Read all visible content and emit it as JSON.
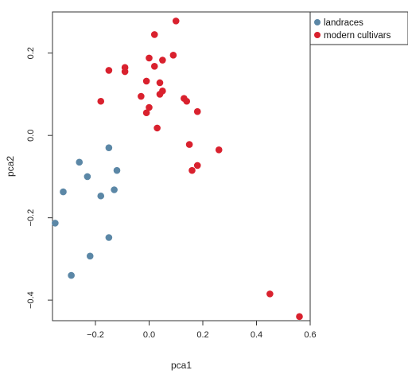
{
  "chart_data": {
    "type": "scatter",
    "xlabel": "pca1",
    "ylabel": "pca2",
    "xlim": [
      -0.36,
      0.6
    ],
    "ylim": [
      -0.45,
      0.3
    ],
    "x_ticks": [
      -0.2,
      0.0,
      0.2,
      0.4,
      0.6
    ],
    "x_tick_labels": [
      "−0.2",
      "0.0",
      "0.2",
      "0.4",
      "0.6"
    ],
    "y_ticks": [
      -0.4,
      -0.2,
      0.0,
      0.2
    ],
    "y_tick_labels": [
      "−0.4",
      "−0.2",
      "0.0",
      "0.2"
    ],
    "legend_position": "top-right, outside plot",
    "grid": false,
    "series": [
      {
        "name": "landraces",
        "color": "#5b87a6",
        "points": [
          [
            -0.26,
            -0.065
          ],
          [
            -0.23,
            -0.1
          ],
          [
            -0.15,
            -0.03
          ],
          [
            -0.12,
            -0.085
          ],
          [
            -0.32,
            -0.137
          ],
          [
            -0.18,
            -0.147
          ],
          [
            -0.13,
            -0.132
          ],
          [
            -0.35,
            -0.213
          ],
          [
            -0.15,
            -0.248
          ],
          [
            -0.22,
            -0.293
          ],
          [
            -0.29,
            -0.34
          ]
        ]
      },
      {
        "name": "modern  cultivars",
        "color": "#d9212e",
        "points": [
          [
            0.1,
            0.278
          ],
          [
            0.02,
            0.245
          ],
          [
            -0.09,
            0.165
          ],
          [
            -0.09,
            0.155
          ],
          [
            -0.15,
            0.158
          ],
          [
            0.0,
            0.188
          ],
          [
            0.05,
            0.183
          ],
          [
            0.09,
            0.195
          ],
          [
            0.02,
            0.168
          ],
          [
            -0.01,
            0.132
          ],
          [
            0.04,
            0.128
          ],
          [
            0.05,
            0.108
          ],
          [
            0.04,
            0.1
          ],
          [
            -0.03,
            0.095
          ],
          [
            -0.18,
            0.083
          ],
          [
            0.13,
            0.09
          ],
          [
            0.14,
            0.083
          ],
          [
            0.0,
            0.068
          ],
          [
            -0.01,
            0.055
          ],
          [
            0.18,
            0.058
          ],
          [
            0.03,
            0.018
          ],
          [
            0.15,
            -0.022
          ],
          [
            0.26,
            -0.035
          ],
          [
            0.18,
            -0.073
          ],
          [
            0.16,
            -0.085
          ],
          [
            0.45,
            -0.385
          ],
          [
            0.56,
            -0.44
          ]
        ]
      }
    ]
  }
}
